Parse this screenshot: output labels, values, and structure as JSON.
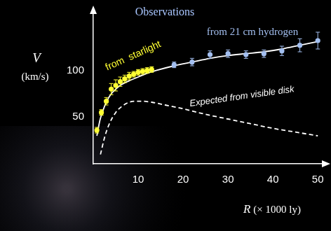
{
  "chart_data": {
    "type": "scatter",
    "title": "Observations",
    "xlabel": "R (× 1000 ly)",
    "ylabel": [
      "V",
      "(km/s)"
    ],
    "xlim": [
      0,
      52
    ],
    "xticks": [
      10,
      20,
      30,
      40,
      50
    ],
    "ylim": [
      0,
      165
    ],
    "yticks": [
      50,
      100
    ],
    "grid": false,
    "series": [
      {
        "name": "from  starlight",
        "type": "scatter",
        "marker": "circle",
        "color": "#ffff33",
        "x": [
          0.8,
          1.8,
          2.9,
          4.0,
          5.0,
          6.0,
          7.0,
          8.0,
          9.0,
          10.0,
          11.0,
          12.0,
          13.0
        ],
        "values": [
          36,
          55,
          67,
          80,
          84,
          88,
          91,
          94,
          96,
          98,
          99,
          100,
          101
        ],
        "errors": [
          3,
          3,
          4,
          6,
          6,
          5,
          4,
          4,
          3,
          3,
          3,
          3,
          3
        ]
      },
      {
        "name": "from 21 cm hydrogen",
        "type": "scatter",
        "marker": "circle",
        "color": "#a3bff0",
        "x": [
          18,
          22,
          26,
          30,
          34,
          38,
          42,
          46,
          50
        ],
        "values": [
          106,
          109,
          117,
          118,
          117,
          118,
          121,
          127,
          132
        ],
        "errors": [
          3,
          4,
          4,
          4,
          4,
          4,
          5,
          7,
          9
        ]
      },
      {
        "type": "line",
        "line_style": "solid",
        "color": "#ffffff",
        "x": [
          0.8,
          1.5,
          2,
          3,
          4,
          5,
          6,
          8,
          10,
          12,
          14,
          18,
          22,
          26,
          30,
          34,
          38,
          42,
          46,
          50
        ],
        "values": [
          30,
          47,
          55,
          67,
          75,
          80,
          84,
          89,
          93,
          97,
          100,
          105,
          109,
          113,
          116,
          118,
          120,
          123,
          127,
          131
        ]
      },
      {
        "name": "Expected from visible disk",
        "type": "line",
        "line_style": "dashed",
        "color": "#ffffff",
        "x": [
          1.6,
          2.5,
          3.5,
          5,
          6.5,
          8,
          9.5,
          11,
          13,
          16,
          20,
          25,
          30,
          35,
          40,
          45,
          50
        ],
        "values": [
          10,
          28,
          42,
          55,
          62,
          66,
          67,
          67,
          66,
          63,
          59,
          53,
          48,
          43,
          38,
          34,
          30
        ]
      }
    ]
  }
}
